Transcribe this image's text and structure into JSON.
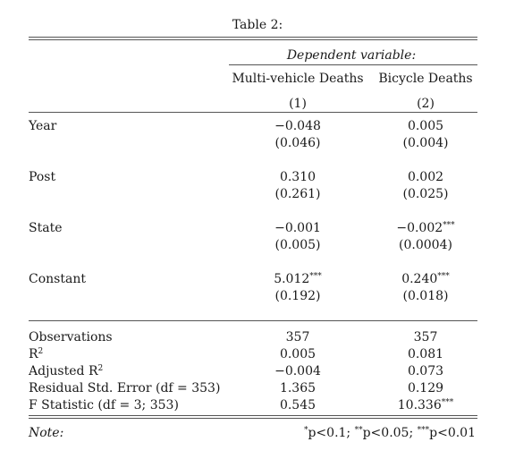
{
  "table": {
    "caption": "Table 2:",
    "dep_var_label": "Dependent variable:",
    "columns": [
      {
        "name": "Multi-vehicle Deaths",
        "number": "(1)"
      },
      {
        "name": "Bicycle Deaths",
        "number": "(2)"
      }
    ],
    "rows": [
      {
        "label": "Year",
        "coef": [
          "−0.048",
          "0.005"
        ],
        "stars": [
          "",
          ""
        ],
        "se": [
          "(0.046)",
          "(0.004)"
        ]
      },
      {
        "label": "Post",
        "coef": [
          "0.310",
          "0.002"
        ],
        "stars": [
          "",
          ""
        ],
        "se": [
          "(0.261)",
          "(0.025)"
        ]
      },
      {
        "label": "State",
        "coef": [
          "−0.001",
          "−0.002"
        ],
        "stars": [
          "",
          "***"
        ],
        "se": [
          "(0.005)",
          "(0.0004)"
        ]
      },
      {
        "label": "Constant",
        "coef": [
          "5.012",
          "0.240"
        ],
        "stars": [
          "***",
          "***"
        ],
        "se": [
          "(0.192)",
          "(0.018)"
        ]
      }
    ],
    "stats": [
      {
        "label": "Observations",
        "label_sup": "",
        "values": [
          "357",
          "357"
        ],
        "stars": [
          "",
          ""
        ]
      },
      {
        "label": "R",
        "label_sup": "2",
        "values": [
          "0.005",
          "0.081"
        ],
        "stars": [
          "",
          ""
        ]
      },
      {
        "label": "Adjusted R",
        "label_sup": "2",
        "values": [
          "−0.004",
          "0.073"
        ],
        "stars": [
          "",
          ""
        ]
      },
      {
        "label": "Residual Std. Error (df = 353)",
        "label_sup": "",
        "values": [
          "1.365",
          "0.129"
        ],
        "stars": [
          "",
          ""
        ]
      },
      {
        "label": "F Statistic (df = 3; 353)",
        "label_sup": "",
        "values": [
          "0.545",
          "10.336"
        ],
        "stars": [
          "",
          "***"
        ]
      }
    ],
    "note_label": "Note:",
    "note": {
      "s1": "*",
      "t1": "p<0.1; ",
      "s2": "**",
      "t2": "p<0.05; ",
      "s3": "***",
      "t3": "p<0.01"
    }
  }
}
